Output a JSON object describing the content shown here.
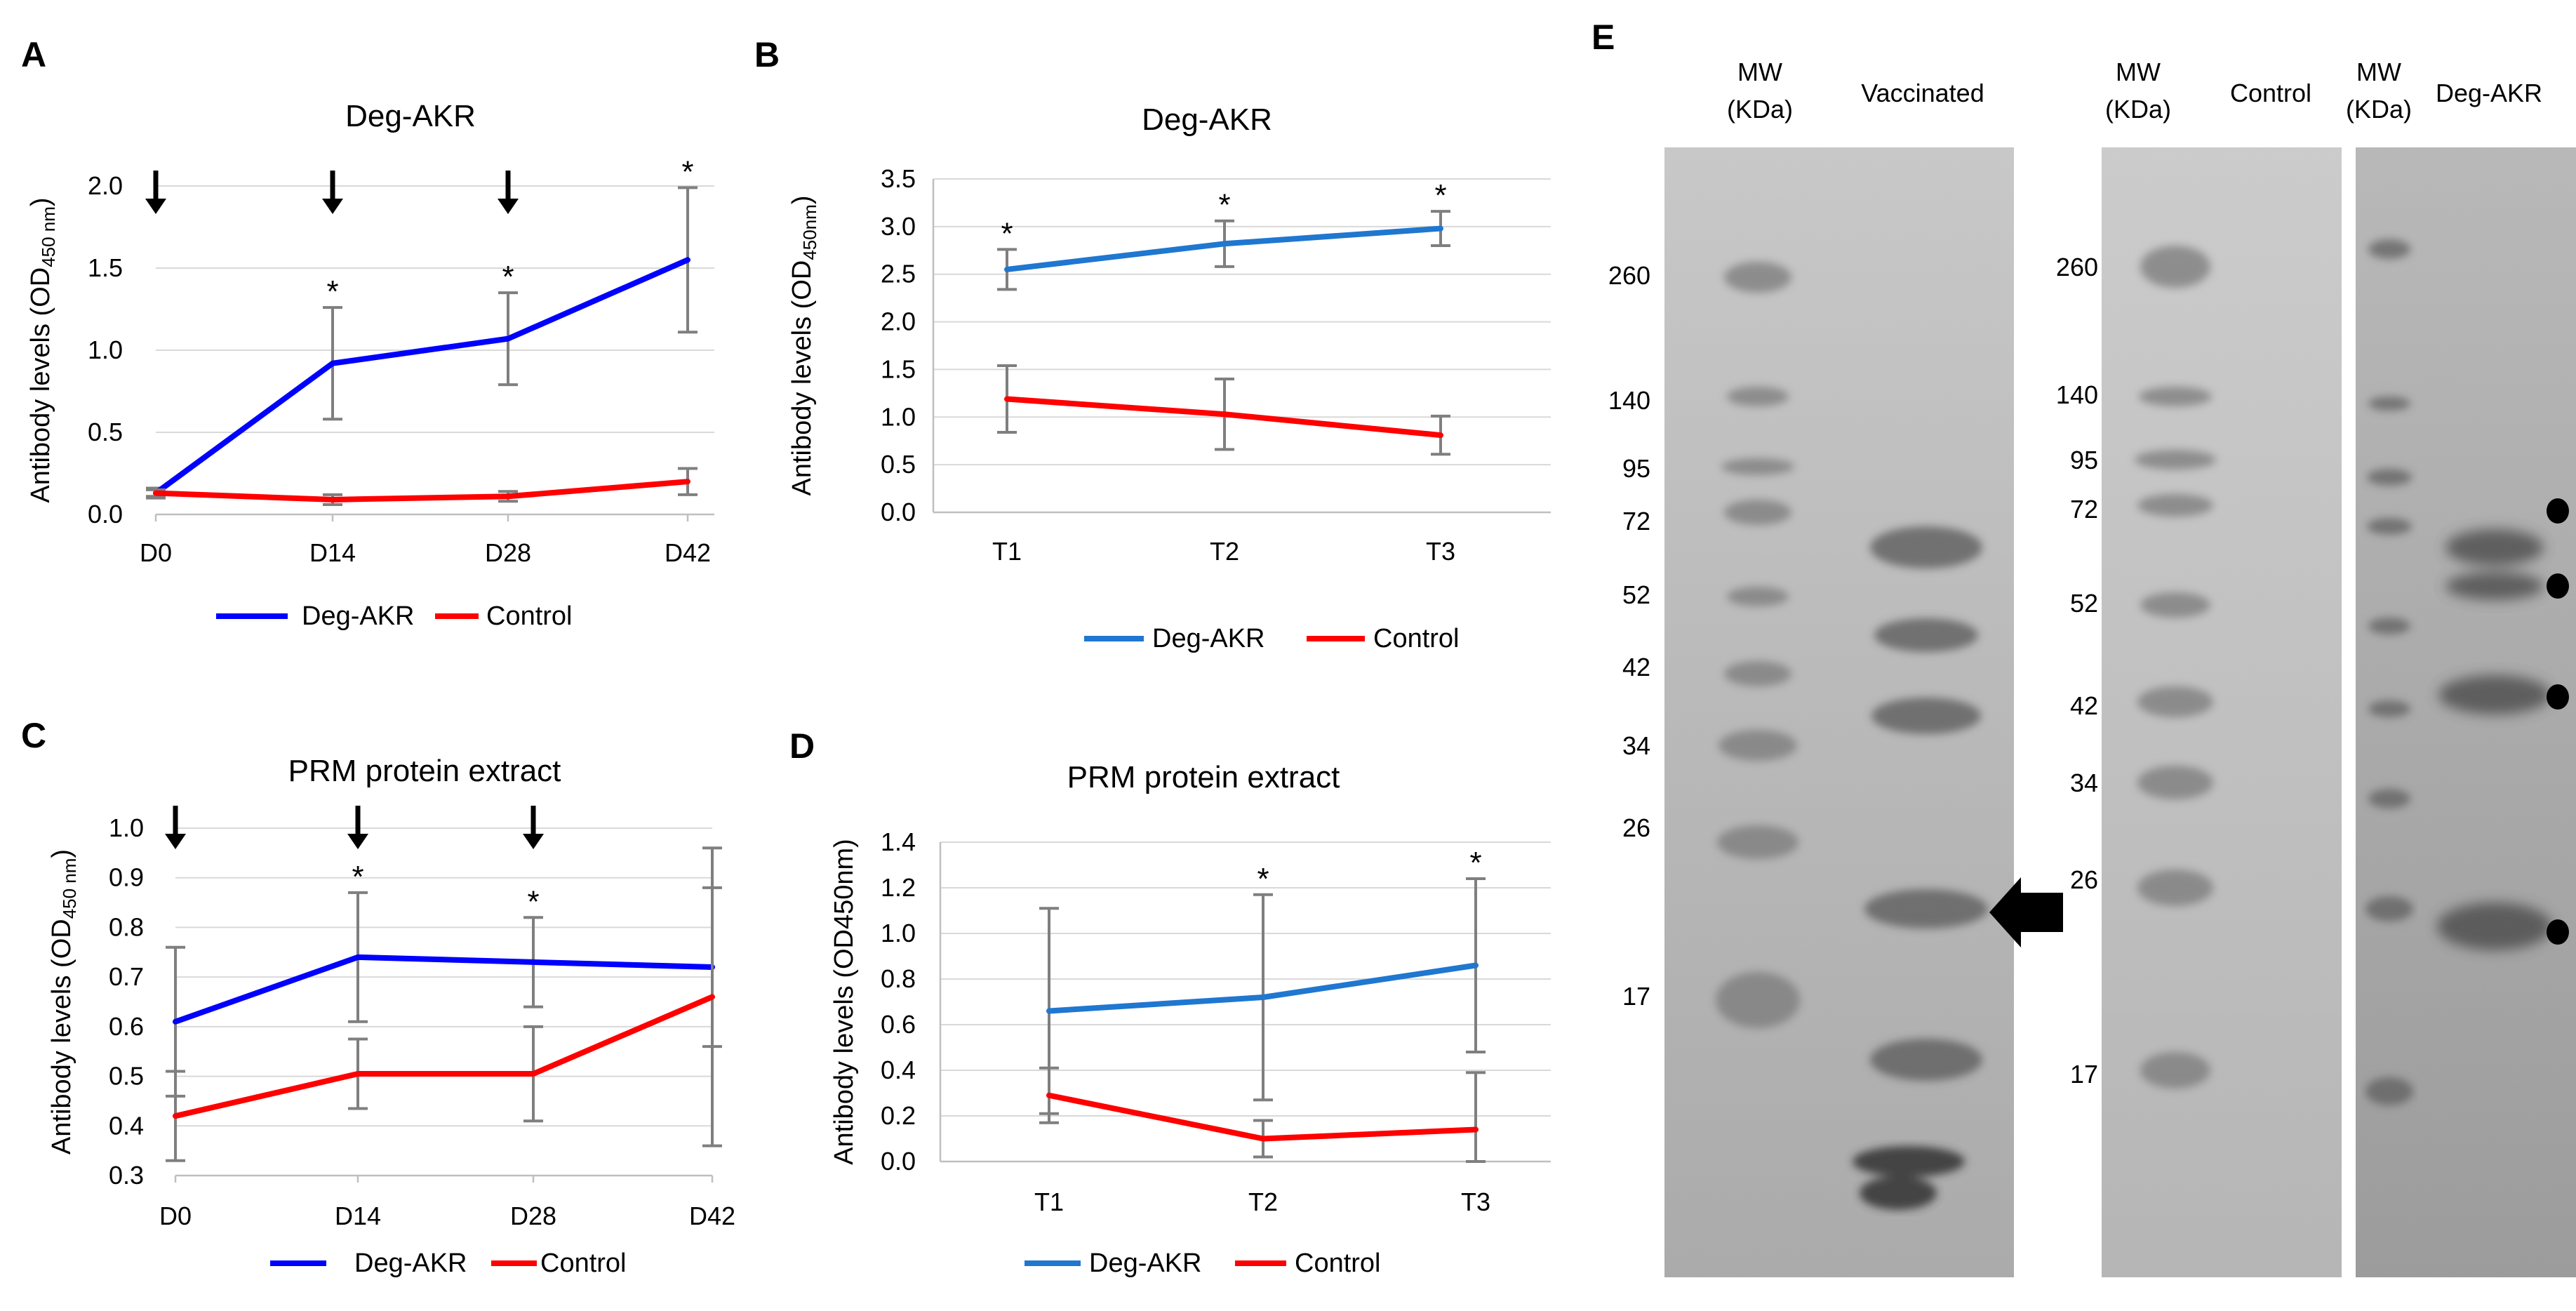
{
  "colors": {
    "deg_dark": "#0000ff",
    "deg_light": "#1f77d0",
    "control": "#ff0000",
    "error": "#7f7f7f"
  },
  "chart_data": [
    {
      "id": "A",
      "letter": "A",
      "type": "line",
      "title": "Deg-AKR",
      "ylabel": "Antibody levels (OD",
      "ylabel_sub": "450 nm",
      "ylabel_close": ")",
      "categories": [
        "D0",
        "D14",
        "D28",
        "D42"
      ],
      "ylim": [
        0,
        2.0
      ],
      "yticks": [
        "0.0",
        "0.5",
        "1.0",
        "1.5",
        "2.0"
      ],
      "arrows_at": [
        "D0",
        "D14",
        "D28"
      ],
      "series": [
        {
          "name": "Deg-AKR",
          "color": "#0000ff",
          "values": [
            0.13,
            0.92,
            1.07,
            1.55
          ],
          "errors": [
            0.03,
            0.34,
            0.28,
            0.44
          ],
          "stars": [
            false,
            true,
            true,
            true
          ]
        },
        {
          "name": "Control",
          "color": "#ff0000",
          "values": [
            0.13,
            0.09,
            0.11,
            0.2
          ],
          "errors": [
            0.02,
            0.03,
            0.03,
            0.08
          ],
          "stars": [
            false,
            false,
            false,
            false
          ]
        }
      ],
      "legend": [
        "Deg-AKR",
        "Control"
      ]
    },
    {
      "id": "B",
      "letter": "B",
      "type": "line",
      "title": "Deg-AKR",
      "ylabel": "Antibody levels (OD",
      "ylabel_sub": "450nm",
      "ylabel_close": ")",
      "categories": [
        "T1",
        "T2",
        "T3"
      ],
      "ylim": [
        0,
        3.5
      ],
      "yticks": [
        "0.0",
        "0.5",
        "1.0",
        "1.5",
        "2.0",
        "2.5",
        "3.0",
        "3.5"
      ],
      "series": [
        {
          "name": "Deg-AKR",
          "color": "#1f77d0",
          "values": [
            2.55,
            2.82,
            2.98
          ],
          "errors": [
            0.21,
            0.24,
            0.18
          ],
          "stars": [
            true,
            true,
            true
          ]
        },
        {
          "name": "Control",
          "color": "#ff0000",
          "values": [
            1.19,
            1.03,
            0.81
          ],
          "errors": [
            0.35,
            0.37,
            0.2
          ],
          "stars": [
            false,
            false,
            false
          ]
        }
      ],
      "legend": [
        "Deg-AKR",
        "Control"
      ]
    },
    {
      "id": "C",
      "letter": "C",
      "type": "line",
      "title": "PRM protein extract",
      "ylabel": "Antibody levels (OD",
      "ylabel_sub": "450 nm",
      "ylabel_close": ")",
      "categories": [
        "D0",
        "D14",
        "D28",
        "D42"
      ],
      "ylim": [
        0.3,
        1.0
      ],
      "yticks": [
        "0.3",
        "0.4",
        "0.5",
        "0.6",
        "0.7",
        "0.8",
        "0.9",
        "1.0"
      ],
      "arrows_at": [
        "D0",
        "D14",
        "D28"
      ],
      "series": [
        {
          "name": "Deg-AKR",
          "color": "#0000ff",
          "values": [
            0.61,
            0.74,
            0.73,
            0.72
          ],
          "errors": [
            0.15,
            0.13,
            0.09,
            0.16
          ],
          "stars": [
            false,
            true,
            true,
            false
          ]
        },
        {
          "name": "Control",
          "color": "#ff0000",
          "values": [
            0.42,
            0.505,
            0.505,
            0.66
          ],
          "errors": [
            0.09,
            0.07,
            0.095,
            0.3
          ],
          "stars": [
            false,
            false,
            false,
            false
          ]
        }
      ],
      "legend": [
        "Deg-AKR",
        "Control"
      ]
    },
    {
      "id": "D",
      "letter": "D",
      "type": "line",
      "title": "PRM protein extract",
      "ylabel": "Antibody levels (OD450nm)",
      "categories": [
        "T1",
        "T2",
        "T3"
      ],
      "ylim": [
        0,
        1.4
      ],
      "yticks": [
        "0.0",
        "0.2",
        "0.4",
        "0.6",
        "0.8",
        "1.0",
        "1.2",
        "1.4"
      ],
      "series": [
        {
          "name": "Deg-AKR",
          "color": "#1f77d0",
          "values": [
            0.66,
            0.72,
            0.86
          ],
          "errors": [
            0.45,
            0.45,
            0.38
          ],
          "stars": [
            false,
            true,
            true
          ]
        },
        {
          "name": "Control",
          "color": "#ff0000",
          "values": [
            0.29,
            0.1,
            0.14
          ],
          "errors": [
            0.12,
            0.08,
            0.25
          ],
          "stars": [
            false,
            false,
            false
          ]
        }
      ],
      "legend": [
        "Deg-AKR",
        "Control"
      ]
    }
  ],
  "gel": {
    "letter": "E",
    "left_blot": {
      "mw_header": "MW",
      "mw_unit": "(KDa)",
      "sample": "Vaccinated",
      "markers": [
        "260",
        "140",
        "95",
        "72",
        "52",
        "42",
        "34",
        "26",
        "17"
      ]
    },
    "right_blot": {
      "mw_header": "MW",
      "mw_unit": "(KDa)",
      "control": "Control",
      "mw_header_2": "MW",
      "mw_unit_2": "(KDa)",
      "sample": "Deg-AKR",
      "markers": [
        "260",
        "140",
        "95",
        "72",
        "52",
        "42",
        "34",
        "26",
        "17"
      ]
    }
  }
}
